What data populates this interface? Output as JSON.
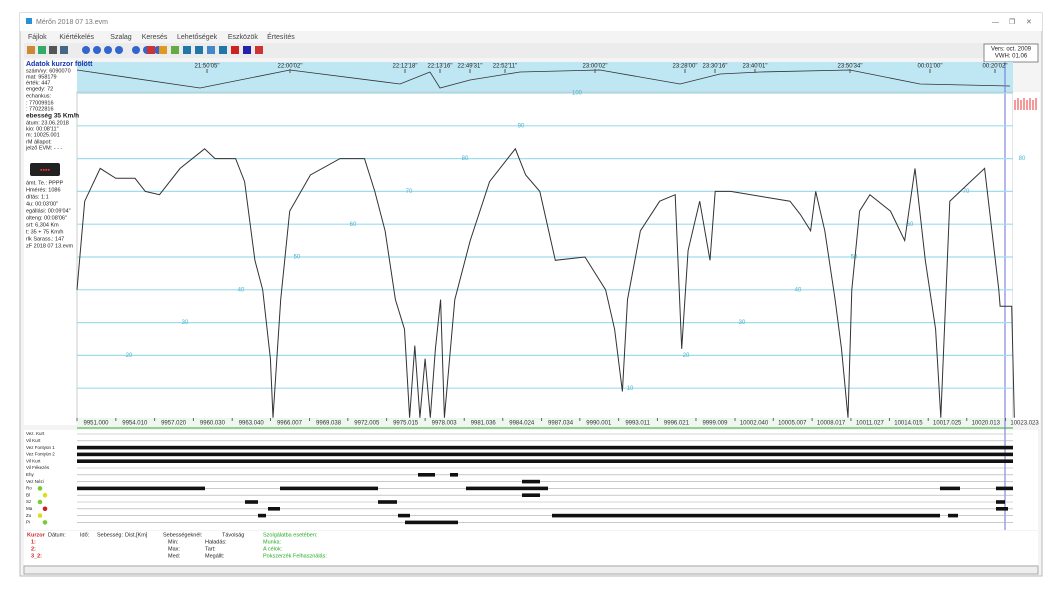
{
  "window": {
    "title": "Mérőn 2018 07 13.evm",
    "controls": [
      "—",
      "❐",
      "✕"
    ]
  },
  "menu": [
    "Fájlok",
    "Kiértékelés",
    "Szalag",
    "Keresés",
    "Lehetőségek",
    "Eszközök",
    "Értesítés"
  ],
  "version": [
    "Vers: oct. 2009",
    "VWH: 01.06"
  ],
  "left_panel": {
    "heading": "Adatok kurzor fölött",
    "items": [
      "szám/vy: 6090070",
      "mat: 958179",
      "érték: 447",
      "engedy: 72",
      "echankus:",
      ": 77009916",
      ": 77022816",
      "ebesség 35 Km/h",
      "átum: 23.06.2018",
      "kio: 00:08'11\"",
      "m: 10025.001",
      "rM állapot:",
      "jelző EVM: - - -",
      "ámt. Te.: PPPP",
      "Hmérés: 1086",
      "dítás: 1:1",
      "4u: 00:03'00\"",
      "egállási: 00:09'04\"",
      "olteng: 00:08'06\"",
      "srt: 6,304 Km",
      "t: 35 + 75 Km/h",
      "rlk Sarass.: 147",
      "zF 2018 07 13.evm"
    ]
  },
  "times": [
    "21:50'05\"",
    "22:00'02\"",
    "22:12'18\"",
    "22:13'16\"",
    "22:49'31\"",
    "22:52'11\"",
    "23:00'02\"",
    "23:28'00\"",
    "23:30'16\"",
    "23:40'01\"",
    "23:50'34\"",
    "00:01'00\"",
    "00:20'02\""
  ],
  "chart_data": {
    "type": "line",
    "x": [
      9951.0,
      9951.6,
      9952.8,
      9954.0,
      9955.5,
      9956.3,
      9957.4,
      9959.0,
      9960.9,
      9961.7,
      9963.3,
      9964.0,
      9964.8,
      9965.4,
      9966.0,
      9966.2,
      9966.8,
      9967.5,
      9969.1,
      9971.4,
      9973.3,
      9974.1,
      9974.9,
      9975.7,
      9976.4,
      9976.8,
      9977.2,
      9977.6,
      9978.0,
      9978.4,
      9978.8,
      9979.2,
      9979.5,
      9980.3,
      9981.5,
      9983.0,
      9985.0,
      9985.8,
      9986.9,
      9988.1,
      9990.4,
      9992.0,
      9992.7,
      9993.3,
      9993.7,
      9994.7,
      9996.2,
      9997.4,
      9997.9,
      9998.4,
      9999.3,
      10000.1,
      10000.5,
      10001.7,
      10006.3,
      10007.1,
      10007.9,
      10008.3,
      10009.0,
      10009.8,
      10010.3,
      10010.8,
      10011.1,
      10011.7,
      10012.5,
      10014.1,
      10015.2,
      10016.0,
      10016.8,
      10017.6,
      10018.0,
      10018.7,
      10020.3,
      10021.4,
      10022.5,
      10022.6,
      10023.5,
      10023.7
    ],
    "series": [
      {
        "color": "#333333",
        "values": [
          40,
          67,
          77,
          74,
          74,
          70,
          69,
          77,
          83,
          80,
          80,
          73,
          49,
          40,
          19,
          1,
          37,
          64,
          75,
          80,
          80,
          70,
          58,
          37,
          28,
          1,
          23,
          1,
          19,
          1,
          22,
          37,
          1,
          37,
          55,
          73,
          83,
          75,
          70,
          49,
          50,
          40,
          28,
          9,
          37,
          58,
          67,
          69,
          22,
          52,
          67,
          49,
          70,
          70,
          67,
          63,
          58,
          70,
          58,
          37,
          22,
          1,
          40,
          64,
          69,
          64,
          55,
          77,
          49,
          28,
          1,
          67,
          73,
          77,
          40,
          35,
          35,
          1
        ]
      }
    ],
    "xlim": [
      9951,
      10023.6
    ],
    "ylim": [
      0,
      100
    ],
    "yticks": [
      10,
      20,
      30,
      40,
      50,
      60,
      70,
      80,
      90,
      100
    ],
    "xticks": [
      {
        "value": 9951,
        "label": "9951.000"
      },
      {
        "value": 9954.01,
        "label": "9954.010"
      },
      {
        "value": 9957.02,
        "label": "9957.020"
      },
      {
        "value": 9960.03,
        "label": "9960.030"
      },
      {
        "value": 9963.04,
        "label": "9963.040"
      },
      {
        "value": 9966.007,
        "label": "9966.007"
      },
      {
        "value": 9969.038,
        "label": "9969.038"
      },
      {
        "value": 9972.005,
        "label": "9972.005"
      },
      {
        "value": 9975.015,
        "label": "9975.015"
      },
      {
        "value": 9978.003,
        "label": "9978.003"
      },
      {
        "value": 9981.036,
        "label": "9981.036"
      },
      {
        "value": 9984.024,
        "label": "9984.024"
      },
      {
        "value": 9987.034,
        "label": "9987.034"
      },
      {
        "value": 9990.001,
        "label": "9990.001"
      },
      {
        "value": 9993.011,
        "label": "9993.011"
      },
      {
        "value": 9996.021,
        "label": "9996.021"
      },
      {
        "value": 9999.009,
        "label": "9999.009"
      },
      {
        "value": 10002.04,
        "label": "10002.040"
      },
      {
        "value": 10005.007,
        "label": "10005.007"
      },
      {
        "value": 10008.017,
        "label": "10008.017"
      },
      {
        "value": 10011.027,
        "label": "10011.027"
      },
      {
        "value": 10014.015,
        "label": "10014.015"
      },
      {
        "value": 10017.025,
        "label": "10017.025"
      },
      {
        "value": 10020.013,
        "label": "10020.013"
      },
      {
        "value": 10023.023,
        "label": "10023.023"
      }
    ],
    "grid": true,
    "grid_color": "#9fdcec"
  },
  "channels": [
    "Vez. Kurt",
    "Vil Kurt",
    "Vez Fontyün 1",
    "Vez Fontyün 2",
    "Vil Kurt",
    "Vil Fékezés",
    "Ehy",
    "Vez Nézi",
    "Ro",
    "Bl",
    "Sz",
    "Ma",
    "Zo",
    "Pi"
  ],
  "bottom": {
    "header": [
      "Kurzor",
      "Dátum:",
      "Idő:",
      "Sebesség:",
      "Dist.[Km]",
      "Sebességeknél:",
      "Távolság"
    ],
    "rows": [
      "1:",
      "2:",
      "3_2:"
    ],
    "stats": [
      "Min:",
      "Max:",
      "Med:"
    ],
    "stats2": [
      "Haladás:",
      "Tart:",
      "Megállt:"
    ],
    "notes": [
      "Szolgálatba esetében:",
      "Munka:",
      "A célok:",
      "Pokszerzék Felhasználás:"
    ]
  }
}
